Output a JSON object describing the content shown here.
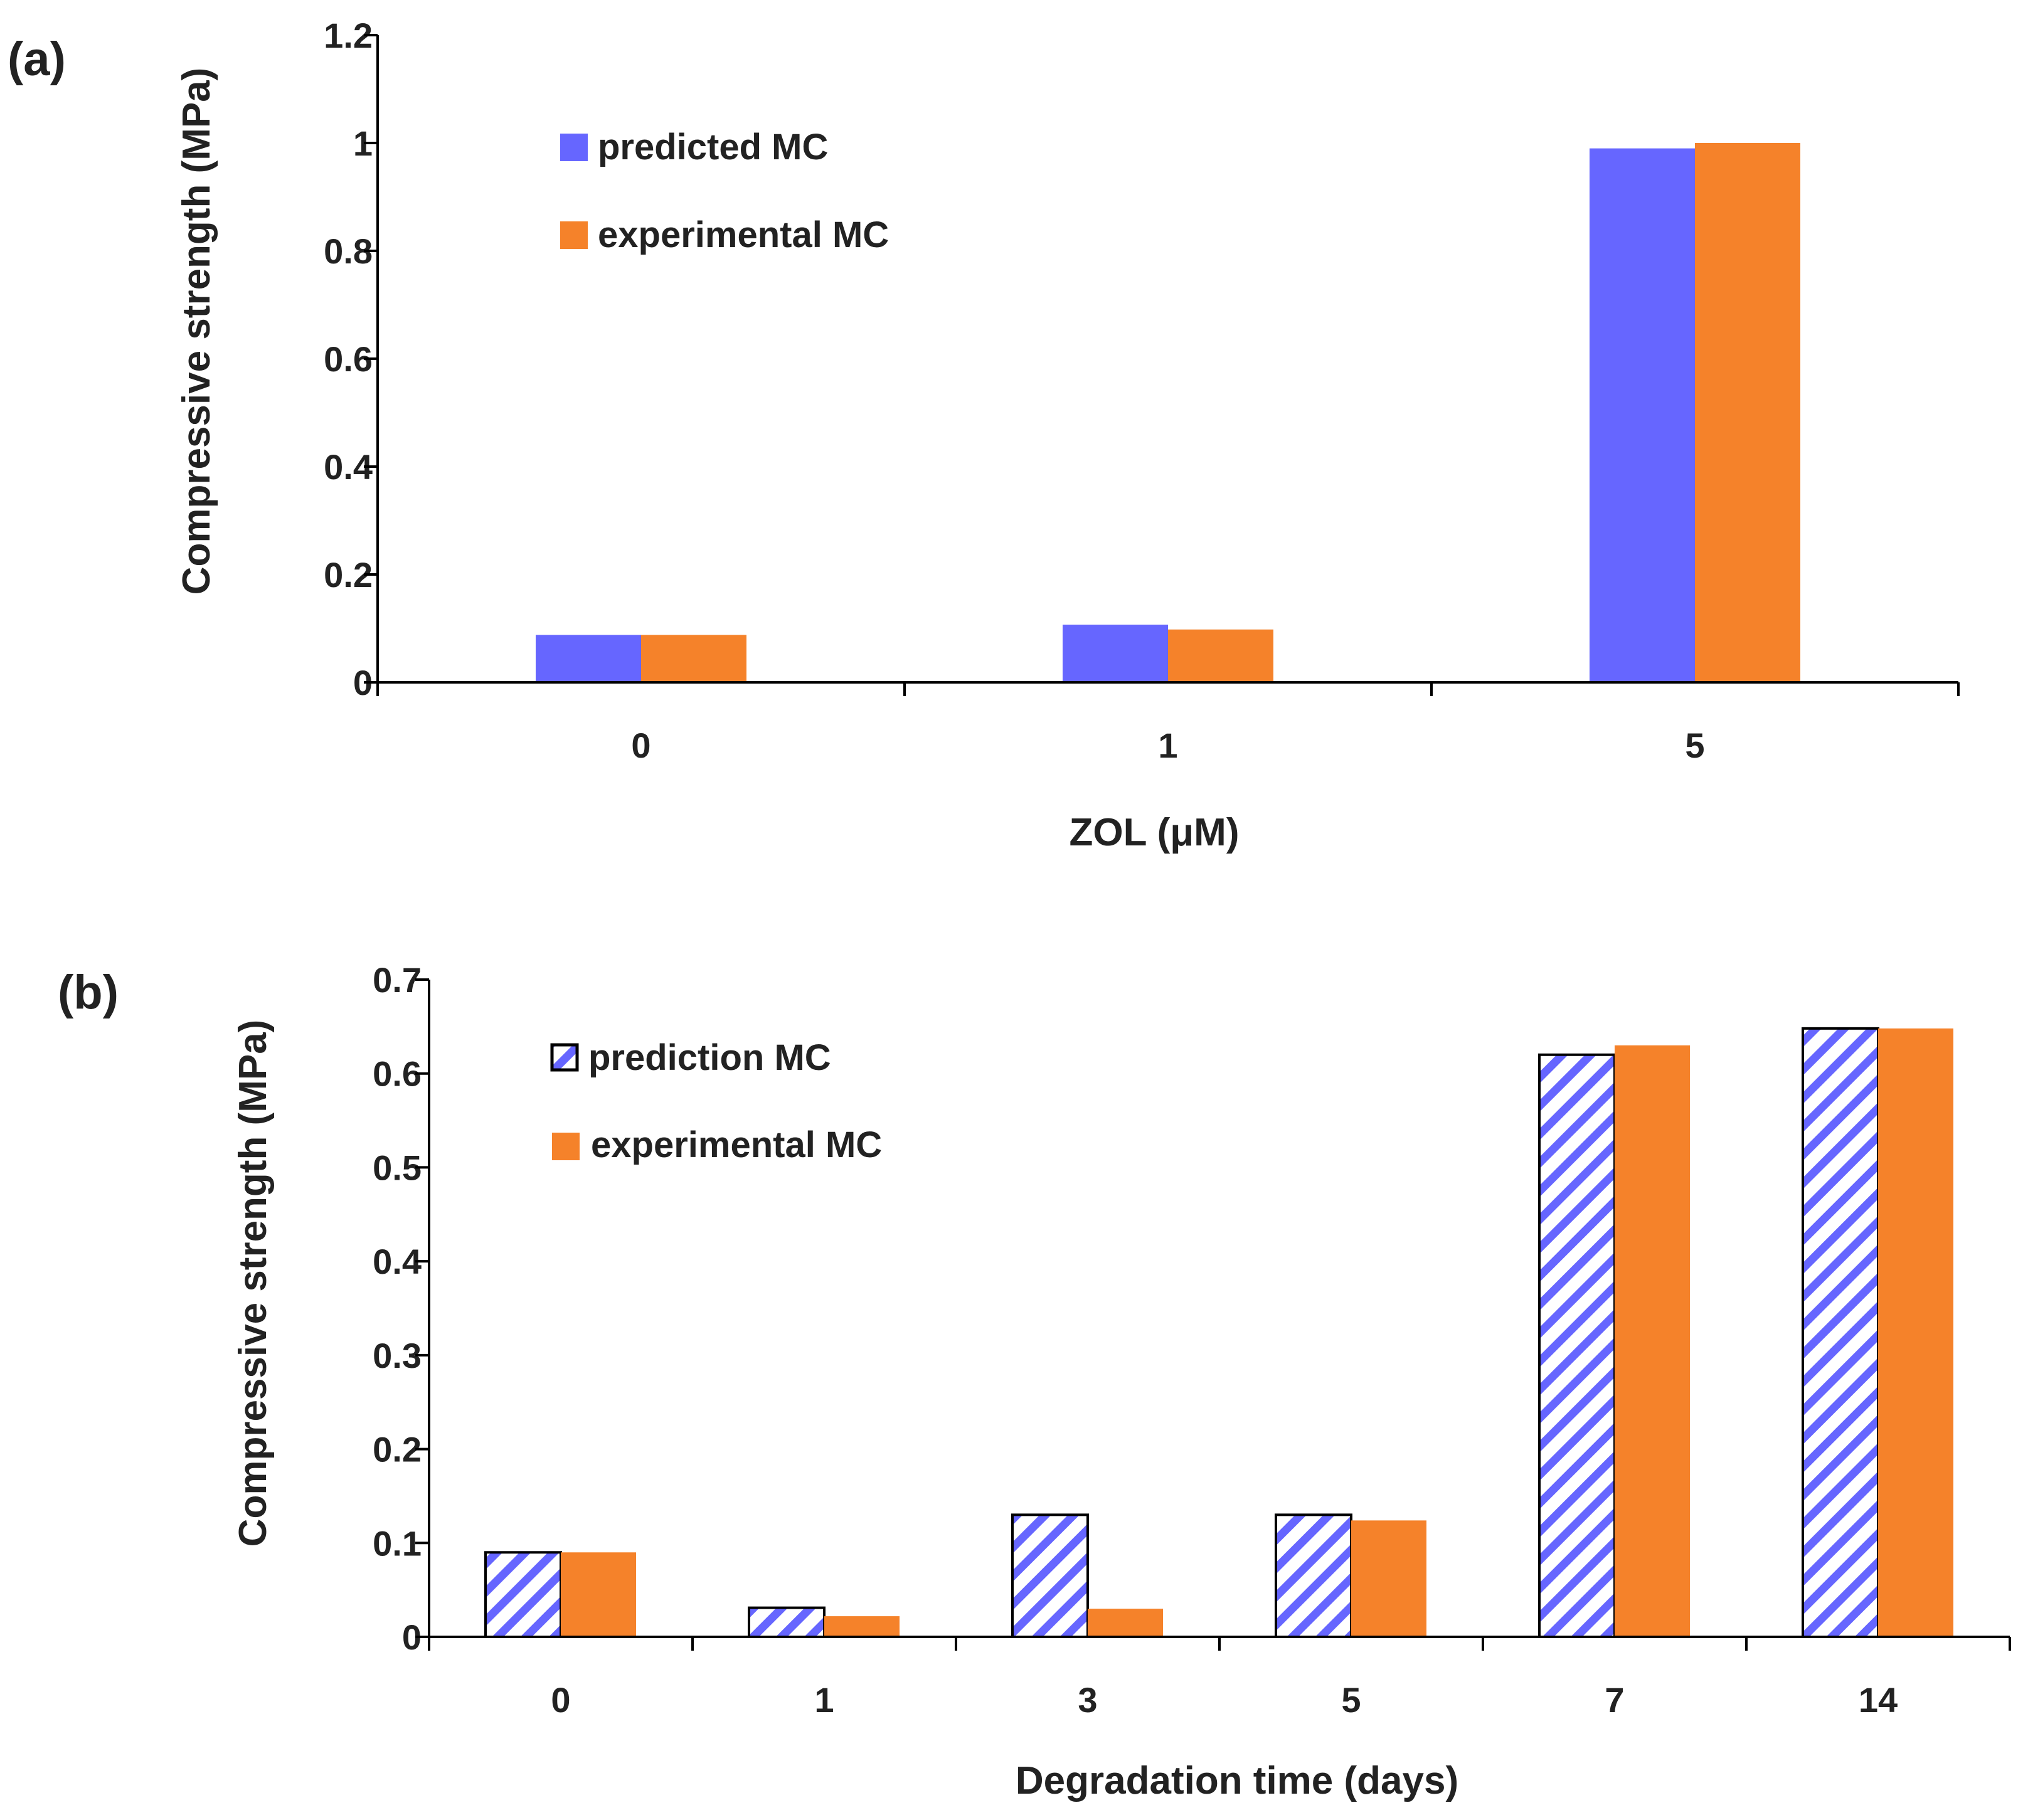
{
  "colors": {
    "predicted": "#6666ff",
    "experimental": "#f5822a",
    "hatch": "#6666ff",
    "axis": "#000000"
  },
  "chart_data": [
    {
      "panel": "(a)",
      "type": "bar",
      "categories": [
        "0",
        "1",
        "5"
      ],
      "series": [
        {
          "name": "predicted MC",
          "values": [
            0.088,
            0.107,
            0.99
          ]
        },
        {
          "name": "experimental MC",
          "values": [
            0.088,
            0.098,
            1.0
          ]
        }
      ],
      "xlabel": "ZOL (μM)",
      "ylabel": "Compressive strength (MPa)",
      "ylim": [
        0,
        1.2
      ],
      "yticks": [
        "0",
        "0.2",
        "0.4",
        "0.6",
        "0.8",
        "1",
        "1.2"
      ],
      "legend": "top-left",
      "grid": false
    },
    {
      "panel": "(b)",
      "type": "bar",
      "categories": [
        "0",
        "1",
        "3",
        "5",
        "7",
        "14"
      ],
      "series": [
        {
          "name": "prediction MC",
          "values": [
            0.09,
            0.031,
            0.13,
            0.13,
            0.62,
            0.648
          ],
          "pattern": "diagonal-hatch"
        },
        {
          "name": "experimental MC",
          "values": [
            0.09,
            0.022,
            0.03,
            0.124,
            0.63,
            0.648
          ]
        }
      ],
      "xlabel": "Degradation time (days)",
      "ylabel": "Compressive strength (MPa)",
      "ylim": [
        0,
        0.7
      ],
      "yticks": [
        "0",
        "0.1",
        "0.2",
        "0.3",
        "0.4",
        "0.5",
        "0.6",
        "0.7"
      ],
      "legend": "top-left",
      "grid": false
    }
  ]
}
